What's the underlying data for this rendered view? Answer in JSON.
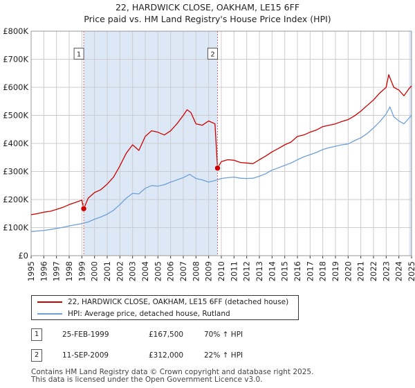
{
  "title_line1": "22, HARDWICK CLOSE, OAKHAM, LE15 6FF",
  "title_line2": "Price paid vs. HM Land Registry's House Price Index (HPI)",
  "colors": {
    "price": "#cc0000",
    "hpi": "#6f9fd8",
    "shade": "#dde8f6",
    "grid": "#cccccc",
    "marker_line": "#dd6666"
  },
  "chart_data": {
    "type": "line",
    "xlim": [
      1995,
      2025
    ],
    "ylim": [
      0,
      800000
    ],
    "yticks": [
      {
        "value": 0,
        "label": "£0"
      },
      {
        "value": 100000,
        "label": "£100K"
      },
      {
        "value": 200000,
        "label": "£200K"
      },
      {
        "value": 300000,
        "label": "£300K"
      },
      {
        "value": 400000,
        "label": "£400K"
      },
      {
        "value": 500000,
        "label": "£500K"
      },
      {
        "value": 600000,
        "label": "£600K"
      },
      {
        "value": 700000,
        "label": "£700K"
      },
      {
        "value": 800000,
        "label": "£800K"
      }
    ],
    "xticks": [
      "1995",
      "1996",
      "1997",
      "1998",
      "1999",
      "2000",
      "2001",
      "2002",
      "2003",
      "2004",
      "2005",
      "2006",
      "2007",
      "2008",
      "2009",
      "2010",
      "2011",
      "2012",
      "2013",
      "2014",
      "2015",
      "2016",
      "2017",
      "2018",
      "2019",
      "2020",
      "2021",
      "2022",
      "2023",
      "2024",
      "2025"
    ],
    "shaded_ranges": [
      [
        1999.15,
        2009.7
      ],
      [
        2024.8,
        2025.0
      ]
    ],
    "series": [
      {
        "name": "22, HARDWICK CLOSE, OAKHAM, LE15 6FF (detached house)",
        "color": "#cc0000",
        "x": [
          1995.0,
          1995.5,
          1996.0,
          1996.5,
          1997.0,
          1997.5,
          1998.0,
          1998.5,
          1999.0,
          1999.15,
          1999.5,
          2000.0,
          2000.5,
          2001.0,
          2001.5,
          2002.0,
          2002.5,
          2003.0,
          2003.5,
          2004.0,
          2004.5,
          2005.0,
          2005.5,
          2006.0,
          2006.5,
          2007.0,
          2007.3,
          2007.6,
          2008.0,
          2008.5,
          2009.0,
          2009.5,
          2009.7,
          2010.0,
          2010.5,
          2011.0,
          2011.5,
          2012.0,
          2012.5,
          2013.0,
          2013.5,
          2014.0,
          2014.5,
          2015.0,
          2015.5,
          2016.0,
          2016.5,
          2017.0,
          2017.5,
          2018.0,
          2018.5,
          2019.0,
          2019.5,
          2020.0,
          2020.5,
          2021.0,
          2021.5,
          2022.0,
          2022.5,
          2023.0,
          2023.2,
          2023.6,
          2024.0,
          2024.4,
          2024.8,
          2025.0
        ],
        "values": [
          146000,
          150000,
          155000,
          158000,
          165000,
          172000,
          182000,
          190000,
          198000,
          167500,
          205000,
          225000,
          235000,
          255000,
          280000,
          320000,
          365000,
          395000,
          375000,
          425000,
          445000,
          440000,
          430000,
          445000,
          470000,
          500000,
          520000,
          510000,
          470000,
          465000,
          480000,
          470000,
          312000,
          335000,
          342000,
          340000,
          332000,
          330000,
          328000,
          342000,
          355000,
          370000,
          382000,
          395000,
          405000,
          425000,
          430000,
          440000,
          448000,
          460000,
          465000,
          470000,
          478000,
          485000,
          498000,
          515000,
          535000,
          555000,
          580000,
          600000,
          645000,
          600000,
          590000,
          570000,
          595000,
          605000
        ]
      },
      {
        "name": "HPI: Average price, detached house, Rutland",
        "color": "#6f9fd8",
        "x": [
          1995.0,
          1995.5,
          1996.0,
          1996.5,
          1997.0,
          1997.5,
          1998.0,
          1998.5,
          1999.0,
          1999.5,
          2000.0,
          2000.5,
          2001.0,
          2001.5,
          2002.0,
          2002.5,
          2003.0,
          2003.5,
          2004.0,
          2004.5,
          2005.0,
          2005.5,
          2006.0,
          2006.5,
          2007.0,
          2007.5,
          2008.0,
          2008.5,
          2009.0,
          2009.5,
          2010.0,
          2010.5,
          2011.0,
          2011.5,
          2012.0,
          2012.5,
          2013.0,
          2013.5,
          2014.0,
          2014.5,
          2015.0,
          2015.5,
          2016.0,
          2016.5,
          2017.0,
          2017.5,
          2018.0,
          2018.5,
          2019.0,
          2019.5,
          2020.0,
          2020.5,
          2021.0,
          2021.5,
          2022.0,
          2022.5,
          2023.0,
          2023.3,
          2023.6,
          2024.0,
          2024.4,
          2024.8,
          2025.0
        ],
        "values": [
          86000,
          88000,
          90000,
          93000,
          97000,
          101000,
          106000,
          110000,
          114000,
          120000,
          130000,
          138000,
          148000,
          162000,
          182000,
          205000,
          222000,
          220000,
          240000,
          250000,
          248000,
          253000,
          262000,
          270000,
          278000,
          290000,
          275000,
          270000,
          262000,
          268000,
          275000,
          278000,
          280000,
          276000,
          275000,
          276000,
          283000,
          292000,
          305000,
          313000,
          322000,
          330000,
          342000,
          352000,
          360000,
          368000,
          378000,
          385000,
          390000,
          395000,
          398000,
          410000,
          420000,
          435000,
          455000,
          478000,
          505000,
          530000,
          495000,
          480000,
          470000,
          490000,
          500000
        ]
      }
    ],
    "sales": [
      {
        "id": "1",
        "x": 1999.15,
        "value": 167500
      },
      {
        "id": "2",
        "x": 2009.7,
        "value": 312000
      }
    ]
  },
  "legend": {
    "items": [
      {
        "label": "22, HARDWICK CLOSE, OAKHAM, LE15 6FF (detached house)"
      },
      {
        "label": "HPI: Average price, detached house, Rutland"
      }
    ]
  },
  "sales_table": [
    {
      "id": "1",
      "date": "25-FEB-1999",
      "price": "£167,500",
      "hpi": "70% ↑ HPI"
    },
    {
      "id": "2",
      "date": "11-SEP-2009",
      "price": "£312,000",
      "hpi": "22% ↑ HPI"
    }
  ],
  "footer": {
    "line1": "Contains HM Land Registry data © Crown copyright and database right 2025.",
    "line2": "This data is licensed under the Open Government Licence v3.0."
  }
}
